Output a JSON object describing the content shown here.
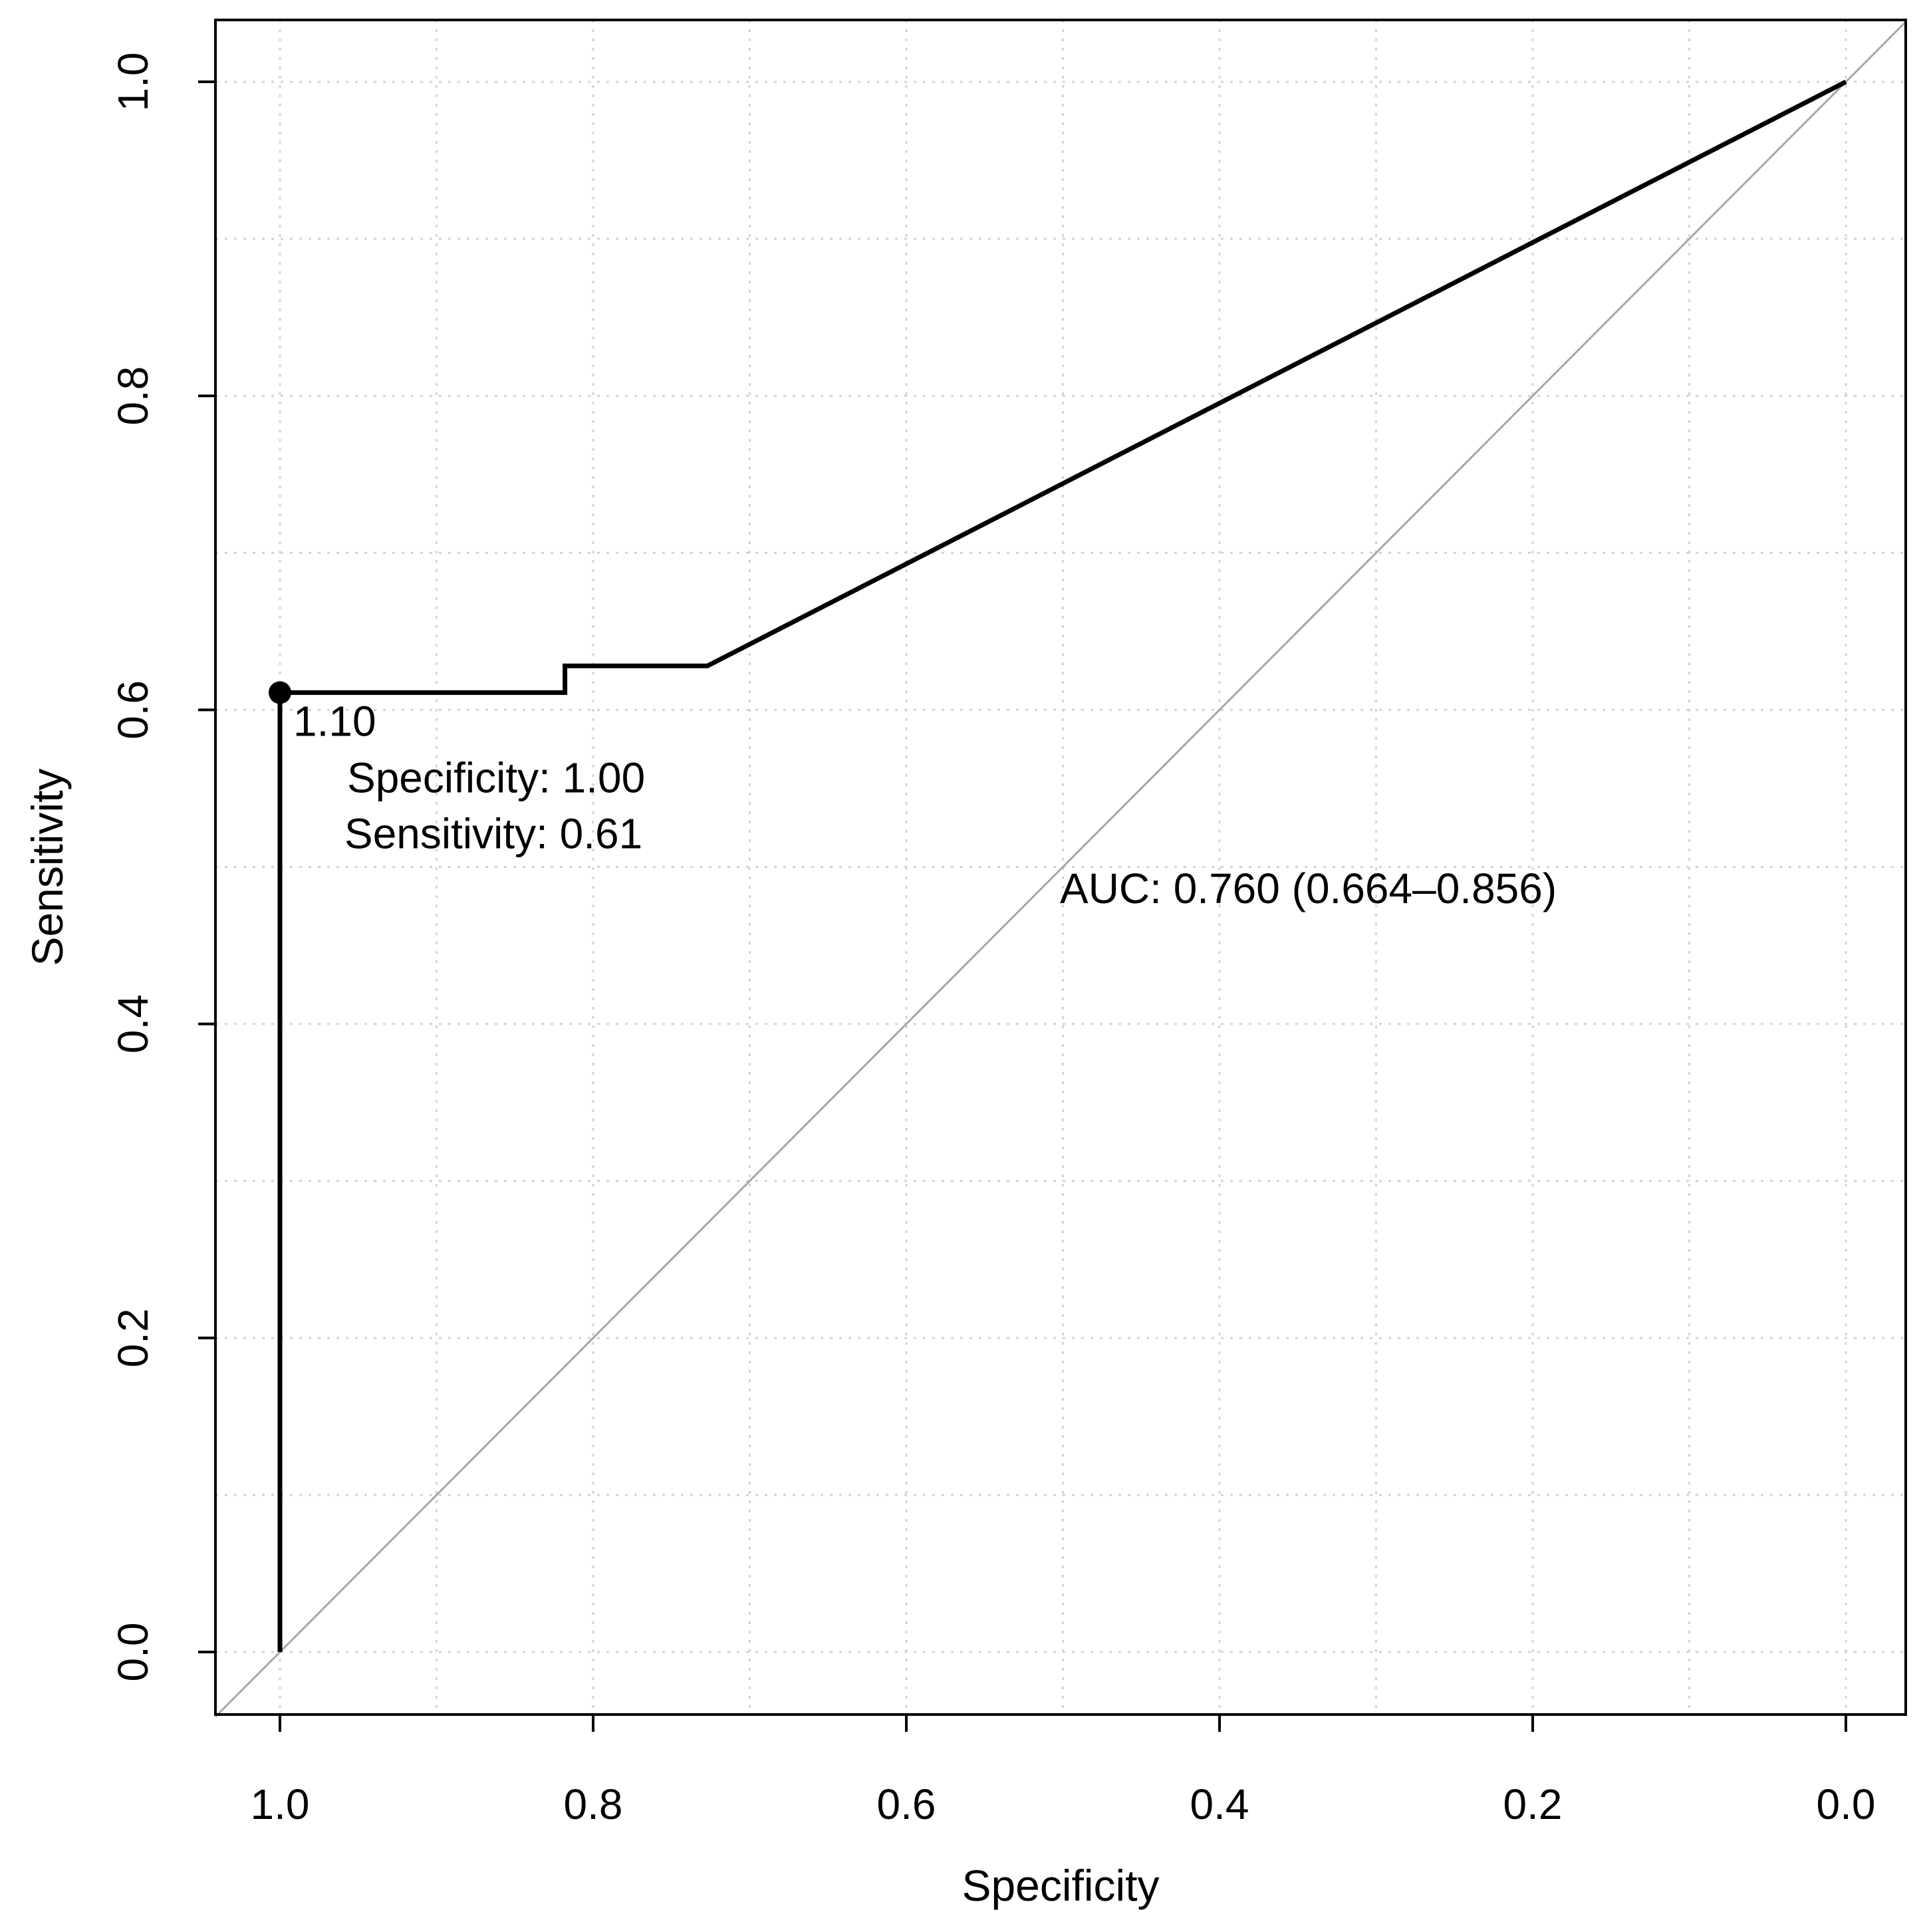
{
  "chart_data": {
    "type": "line",
    "xlabel": "Specificity",
    "ylabel": "Sensitivity",
    "xlim": [
      1.0,
      0.0
    ],
    "ylim": [
      0.0,
      1.0
    ],
    "x_reversed": true,
    "grid": true,
    "x_ticks": [
      1.0,
      0.8,
      0.6,
      0.4,
      0.2,
      0.0
    ],
    "x_tick_labels": [
      "1.0",
      "0.8",
      "0.6",
      "0.4",
      "0.2",
      "0.0"
    ],
    "y_ticks": [
      0.0,
      0.2,
      0.4,
      0.6,
      0.8,
      1.0
    ],
    "y_tick_labels": [
      "0.0",
      "0.2",
      "0.4",
      "0.6",
      "0.8",
      "1.0"
    ],
    "series": [
      {
        "x": [
          1.0,
          1.0,
          0.818,
          0.818,
          0.727,
          0.0
        ],
        "y": [
          0.0,
          0.611,
          0.611,
          0.628,
          0.628,
          1.0
        ],
        "color": "#000000"
      }
    ],
    "reference_line": {
      "x": [
        1.0,
        0.0
      ],
      "y": [
        0.0,
        1.0
      ],
      "color": "#a6a6a6"
    },
    "threshold_point": {
      "x": 1.0,
      "y": 0.611,
      "label": "1.10",
      "specificity_text": "Specificity: 1.00",
      "sensitivity_text": "Sensitivity: 0.61"
    },
    "auc_text": "AUC: 0.760 (0.664–0.856)"
  }
}
